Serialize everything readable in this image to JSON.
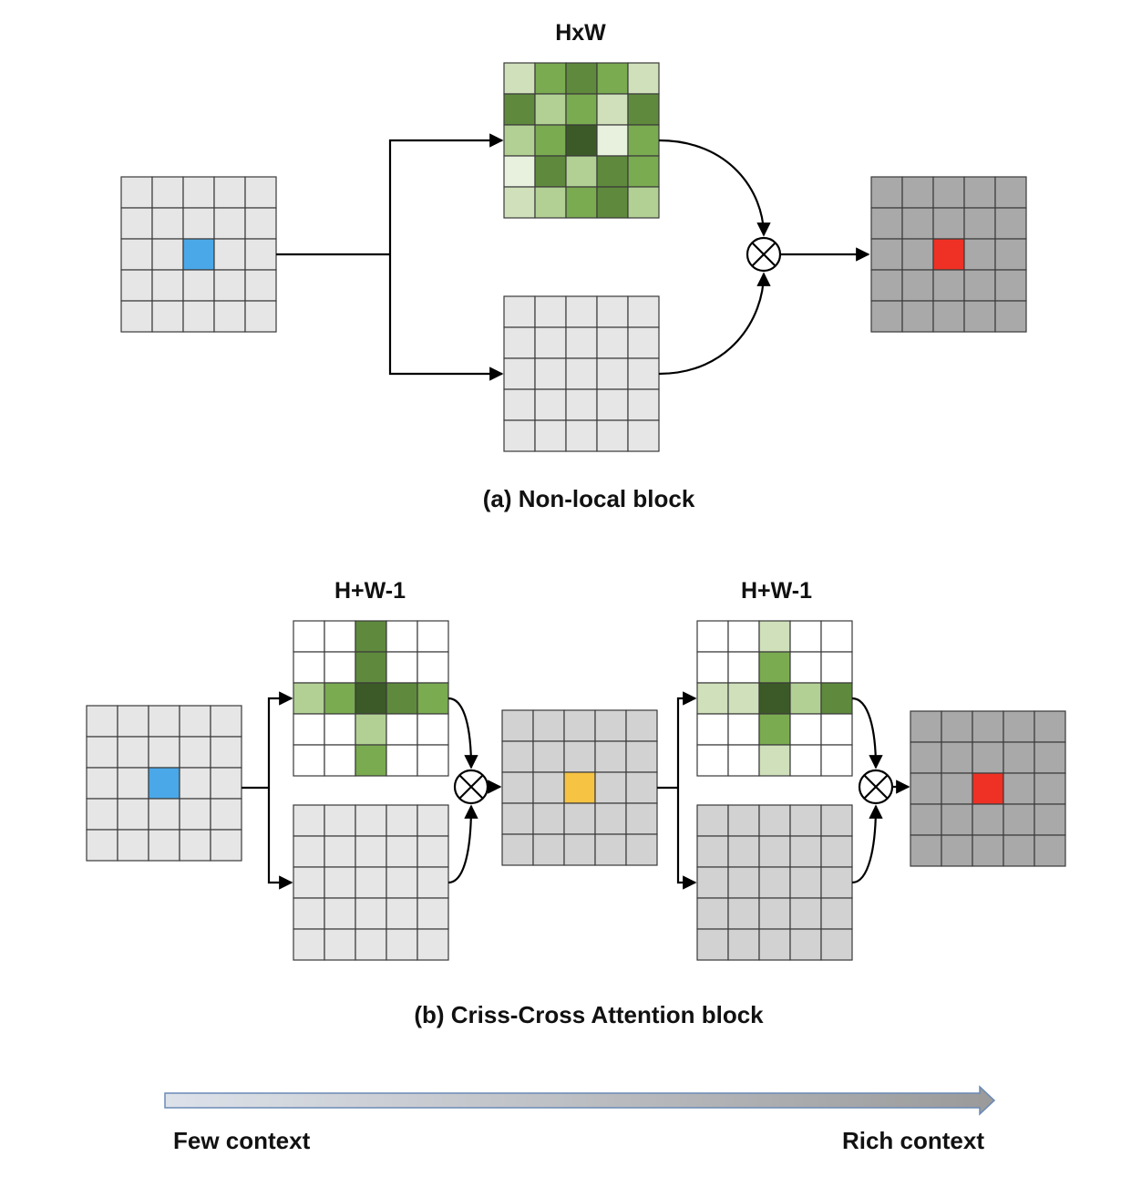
{
  "colors": {
    "input_cell": "#e6e6e6",
    "light_gray": "#e6e6e6",
    "mid_gray": "#d2d2d2",
    "dark_gray": "#a9a9a9",
    "blue": "#4aa8e8",
    "red": "#ee3124",
    "yellow": "#f6c342",
    "white": "#ffffff",
    "g0": "#e8f0de",
    "g1": "#cfe0bb",
    "g2": "#b2d094",
    "g3": "#7aab50",
    "g4": "#5f8a3d",
    "g5": "#3c5a27"
  },
  "panel_a": {
    "map_label": "HxW",
    "caption": "(a) Non-local block",
    "attention_map": [
      [
        "g1",
        "g3",
        "g4",
        "g3",
        "g1"
      ],
      [
        "g4",
        "g2",
        "g3",
        "g1",
        "g4"
      ],
      [
        "g2",
        "g3",
        "g5",
        "g0",
        "g3"
      ],
      [
        "g0",
        "g4",
        "g2",
        "g4",
        "g3"
      ],
      [
        "g1",
        "g2",
        "g3",
        "g4",
        "g2"
      ]
    ]
  },
  "panel_b": {
    "map1_label": "H+W-1",
    "map2_label": "H+W-1",
    "caption": "(b) Criss-Cross Attention block",
    "attention_map1": [
      [
        "white",
        "white",
        "g4",
        "white",
        "white"
      ],
      [
        "white",
        "white",
        "g4",
        "white",
        "white"
      ],
      [
        "g2",
        "g3",
        "g5",
        "g4",
        "g3"
      ],
      [
        "white",
        "white",
        "g2",
        "white",
        "white"
      ],
      [
        "white",
        "white",
        "g3",
        "white",
        "white"
      ]
    ],
    "attention_map2": [
      [
        "white",
        "white",
        "g1",
        "white",
        "white"
      ],
      [
        "white",
        "white",
        "g3",
        "white",
        "white"
      ],
      [
        "g1",
        "g1",
        "g5",
        "g2",
        "g4"
      ],
      [
        "white",
        "white",
        "g3",
        "white",
        "white"
      ],
      [
        "white",
        "white",
        "g1",
        "white",
        "white"
      ]
    ]
  },
  "context_bar": {
    "left_label": "Few context",
    "right_label": "Rich context"
  },
  "operator_symbol": "⊗"
}
